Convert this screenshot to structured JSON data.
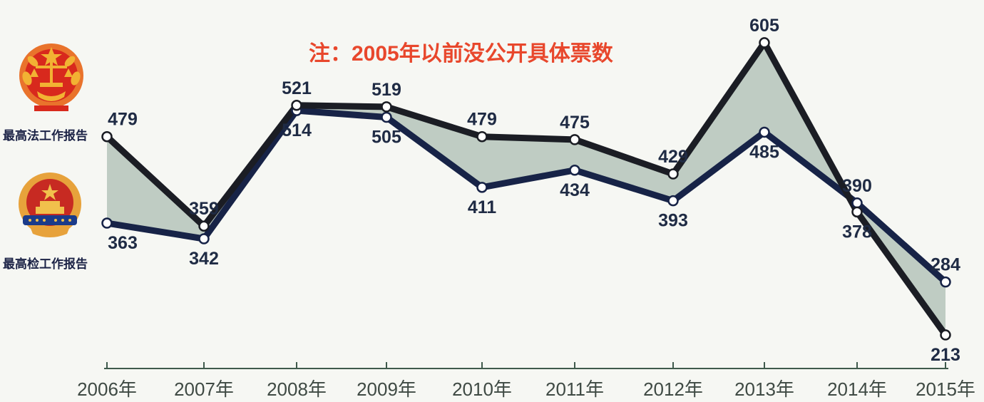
{
  "note": "注：2005年以前没公开具体票数",
  "legend": {
    "court_label": "最高法工作报告",
    "procuratorate_label": "最高检工作报告",
    "court_emblem_icon": "supreme-court-emblem-icon",
    "procuratorate_emblem_icon": "procuratorate-emblem-icon"
  },
  "colors": {
    "court_line": "#1b1d24",
    "procuratorate_line": "#172347",
    "fill": "#b9c7be",
    "note": "#e8472c",
    "axis": "#3f5a4c"
  },
  "chart_data": {
    "type": "line",
    "categories": [
      "2006年",
      "2007年",
      "2008年",
      "2009年",
      "2010年",
      "2011年",
      "2012年",
      "2013年",
      "2014年",
      "2015年"
    ],
    "series": [
      {
        "name": "最高法工作报告",
        "values": [
          479,
          359,
          521,
          519,
          479,
          475,
          429,
          605,
          378,
          213
        ]
      },
      {
        "name": "最高检工作报告",
        "values": [
          363,
          342,
          514,
          505,
          411,
          434,
          393,
          485,
          390,
          284
        ]
      }
    ],
    "title": "",
    "xlabel": "",
    "ylabel": "",
    "grid": false
  }
}
